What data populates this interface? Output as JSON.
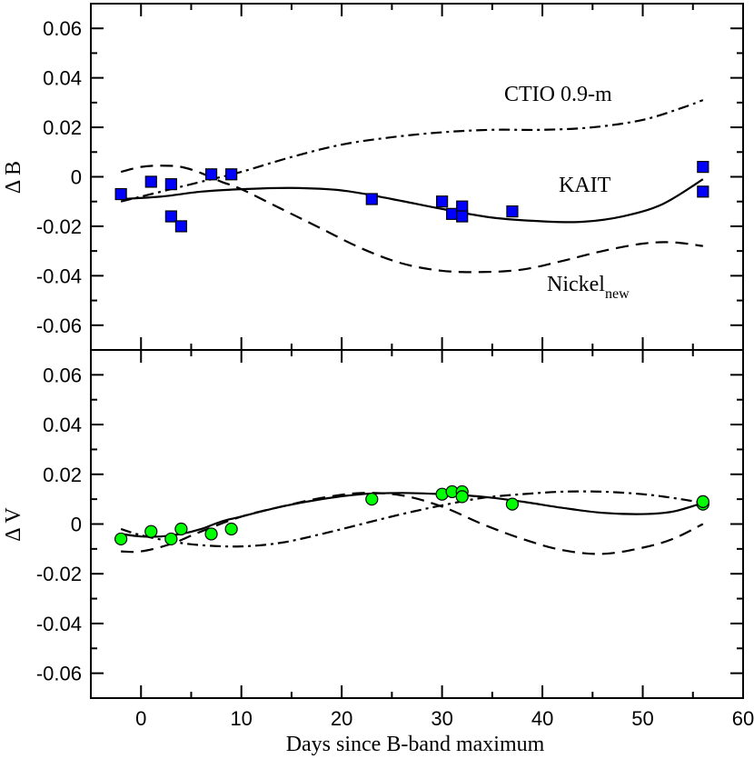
{
  "chart_data": [
    {
      "type": "scatter",
      "panel": "top",
      "ylabel": "Δ B",
      "xlim": [
        -5,
        60
      ],
      "ylim": [
        -0.07,
        0.07
      ],
      "yticks": [
        "-0.06",
        "-0.04",
        "-0.02",
        "0",
        "0.02",
        "0.04",
        "0.06"
      ],
      "ytick_values": [
        -0.06,
        -0.04,
        -0.02,
        0,
        0.02,
        0.04,
        0.06
      ],
      "points": {
        "marker": "square",
        "color": "#0000ff",
        "x": [
          -2,
          1,
          3,
          3,
          4,
          7,
          9,
          23,
          30,
          31,
          32,
          32,
          37,
          56,
          56
        ],
        "y": [
          -0.007,
          -0.002,
          -0.003,
          -0.016,
          -0.02,
          0.001,
          0.001,
          -0.009,
          -0.01,
          -0.015,
          -0.012,
          -0.016,
          -0.014,
          0.004,
          -0.006
        ]
      },
      "series": [
        {
          "name": "KAIT",
          "style": "solid",
          "x": [
            -2,
            2,
            6,
            10,
            15,
            20,
            25,
            30,
            35,
            40,
            44,
            48,
            52,
            56
          ],
          "y": [
            -0.009,
            -0.008,
            -0.006,
            -0.005,
            -0.0045,
            -0.0055,
            -0.009,
            -0.013,
            -0.0165,
            -0.018,
            -0.0182,
            -0.016,
            -0.011,
            -0.001
          ]
        },
        {
          "name": "CTIO 0.9-m",
          "style": "dashdot",
          "x": [
            -2,
            0,
            3,
            6,
            10,
            15,
            20,
            25,
            30,
            35,
            40,
            45,
            50,
            54,
            56
          ],
          "y": [
            -0.01,
            -0.008,
            -0.005,
            -0.002,
            0.002,
            0.008,
            0.013,
            0.016,
            0.018,
            0.019,
            0.019,
            0.02,
            0.023,
            0.028,
            0.031
          ]
        },
        {
          "name": "Nickel_new",
          "style": "dashed",
          "x": [
            -2,
            0,
            2,
            4,
            6,
            8,
            10,
            14,
            18,
            22,
            26,
            30,
            34,
            38,
            42,
            46,
            50,
            53,
            56
          ],
          "y": [
            0.002,
            0.004,
            0.0045,
            0.004,
            0.0015,
            -0.002,
            -0.005,
            -0.013,
            -0.021,
            -0.029,
            -0.035,
            -0.038,
            -0.0385,
            -0.0375,
            -0.034,
            -0.03,
            -0.027,
            -0.0265,
            -0.028
          ]
        }
      ],
      "annotations": [
        {
          "label": "CTIO 0.9-m",
          "sub": ""
        },
        {
          "label": "KAIT",
          "sub": ""
        },
        {
          "label": "Nickel",
          "sub": "new"
        }
      ]
    },
    {
      "type": "scatter",
      "panel": "bottom",
      "ylabel": "Δ V",
      "xlabel": "Days since B-band maximum",
      "xlim": [
        -5,
        60
      ],
      "ylim": [
        -0.07,
        0.07
      ],
      "xticks": [
        "0",
        "10",
        "20",
        "30",
        "40",
        "50",
        "60"
      ],
      "xtick_values": [
        0,
        10,
        20,
        30,
        40,
        50,
        60
      ],
      "yticks": [
        "-0.06",
        "-0.04",
        "-0.02",
        "0",
        "0.02",
        "0.04",
        "0.06"
      ],
      "ytick_values": [
        -0.06,
        -0.04,
        -0.02,
        0,
        0.02,
        0.04,
        0.06
      ],
      "points": {
        "marker": "circle",
        "color": "#00ff00",
        "x": [
          -2,
          1,
          3,
          4,
          7,
          9,
          23,
          30,
          31,
          32,
          32,
          37,
          56,
          56
        ],
        "y": [
          -0.006,
          -0.003,
          -0.006,
          -0.002,
          -0.004,
          -0.002,
          0.01,
          0.012,
          0.013,
          0.013,
          0.011,
          0.008,
          0.008,
          0.009
        ]
      },
      "series": [
        {
          "name": "solid",
          "style": "solid",
          "x": [
            -2,
            0,
            2,
            4,
            6,
            8,
            10,
            14,
            18,
            22,
            26,
            30,
            34,
            38,
            42,
            46,
            50,
            53,
            56
          ],
          "y": [
            -0.004,
            -0.005,
            -0.005,
            -0.004,
            -0.002,
            0.001,
            0.003,
            0.007,
            0.01,
            0.012,
            0.0125,
            0.012,
            0.011,
            0.009,
            0.0065,
            0.0045,
            0.004,
            0.005,
            0.0085
          ]
        },
        {
          "name": "dashdot",
          "style": "dashdot",
          "x": [
            -2,
            0,
            3,
            6,
            10,
            14,
            18,
            22,
            26,
            30,
            34,
            38,
            42,
            46,
            50,
            53,
            56
          ],
          "y": [
            -0.002,
            -0.0045,
            -0.007,
            -0.0085,
            -0.009,
            -0.0075,
            -0.004,
            0.0,
            0.004,
            0.0075,
            0.0105,
            0.012,
            0.013,
            0.013,
            0.012,
            0.0105,
            0.0085
          ]
        },
        {
          "name": "dashed",
          "style": "dashed",
          "x": [
            -2,
            0,
            3,
            6,
            10,
            14,
            18,
            22,
            26,
            30,
            34,
            38,
            42,
            46,
            50,
            53,
            56
          ],
          "y": [
            -0.011,
            -0.011,
            -0.008,
            -0.003,
            0.003,
            0.007,
            0.0105,
            0.0125,
            0.0115,
            0.007,
            0.0,
            -0.006,
            -0.0105,
            -0.012,
            -0.0095,
            -0.006,
            0.0
          ]
        }
      ]
    }
  ]
}
